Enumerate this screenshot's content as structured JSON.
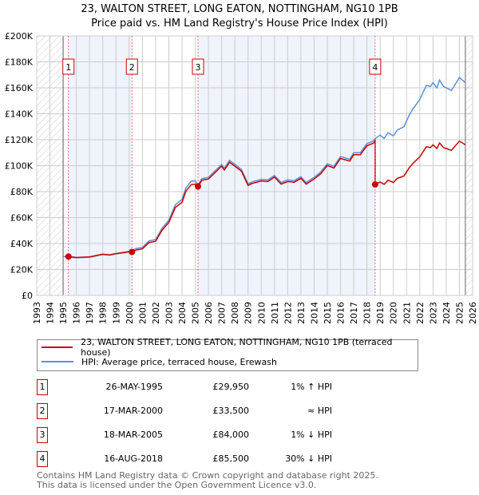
{
  "header": {
    "title": "23, WALTON STREET, LONG EATON, NOTTINGHAM, NG10 1PB",
    "subtitle": "Price paid vs. HM Land Registry's House Price Index (HPI)"
  },
  "chart_data": {
    "type": "line",
    "title": "23, WALTON STREET, LONG EATON, NOTTINGHAM, NG10 1PB",
    "subtitle": "Price paid vs. HM Land Registry's House Price Index (HPI)",
    "xlim": [
      1993,
      2026
    ],
    "ylim": [
      0,
      200000
    ],
    "x_ticks": [
      "1993",
      "1994",
      "1995",
      "1996",
      "1997",
      "1998",
      "1999",
      "2000",
      "2001",
      "2002",
      "2003",
      "2004",
      "2005",
      "2006",
      "2007",
      "2008",
      "2009",
      "2010",
      "2011",
      "2012",
      "2013",
      "2014",
      "2015",
      "2016",
      "2017",
      "2018",
      "2019",
      "2020",
      "2021",
      "2022",
      "2023",
      "2024",
      "2025",
      "2026"
    ],
    "y_ticks": [
      {
        "v": 0,
        "label": "£0"
      },
      {
        "v": 20000,
        "label": "£20K"
      },
      {
        "v": 40000,
        "label": "£40K"
      },
      {
        "v": 60000,
        "label": "£60K"
      },
      {
        "v": 80000,
        "label": "£80K"
      },
      {
        "v": 100000,
        "label": "£100K"
      },
      {
        "v": 120000,
        "label": "£120K"
      },
      {
        "v": 140000,
        "label": "£140K"
      },
      {
        "v": 160000,
        "label": "£160K"
      },
      {
        "v": 180000,
        "label": "£180K"
      },
      {
        "v": 200000,
        "label": "£200K"
      }
    ],
    "grid": true,
    "data_range": [
      1995.0,
      2025.45
    ],
    "colors": {
      "property": "#cc0000",
      "hpi": "#5b8fd6",
      "shade": "#eef3fc",
      "sale_line": "#e05050"
    },
    "hpi_series": {
      "name": "HPI: Average price, terraced house, Erewash",
      "points": [
        [
          1995.0,
          30000
        ],
        [
          1995.4,
          29700
        ],
        [
          1996,
          29000
        ],
        [
          1997,
          29500
        ],
        [
          1998,
          31500
        ],
        [
          1998.5,
          31000
        ],
        [
          1999,
          32000
        ],
        [
          2000,
          33500
        ],
        [
          2000.5,
          36000
        ],
        [
          2001,
          37000
        ],
        [
          2001.5,
          42000
        ],
        [
          2002,
          43000
        ],
        [
          2002.5,
          52000
        ],
        [
          2003,
          58000
        ],
        [
          2003.5,
          70000
        ],
        [
          2004,
          74000
        ],
        [
          2004.3,
          83000
        ],
        [
          2004.7,
          88000
        ],
        [
          2005,
          88500
        ],
        [
          2005.2,
          85000
        ],
        [
          2005.5,
          90000
        ],
        [
          2006,
          91000
        ],
        [
          2006.5,
          96000
        ],
        [
          2007,
          101000
        ],
        [
          2007.2,
          98000
        ],
        [
          2007.6,
          104000
        ],
        [
          2008,
          101000
        ],
        [
          2008.5,
          97000
        ],
        [
          2009,
          86000
        ],
        [
          2009.3,
          87500
        ],
        [
          2010,
          89500
        ],
        [
          2010.5,
          89000
        ],
        [
          2011,
          92500
        ],
        [
          2011.5,
          87000
        ],
        [
          2012,
          89000
        ],
        [
          2012.5,
          88500
        ],
        [
          2013,
          91500
        ],
        [
          2013.4,
          87000
        ],
        [
          2014,
          91000
        ],
        [
          2014.5,
          95000
        ],
        [
          2015,
          101500
        ],
        [
          2015.5,
          99500
        ],
        [
          2016,
          107000
        ],
        [
          2016.7,
          105000
        ],
        [
          2017,
          110000
        ],
        [
          2017.5,
          110000
        ],
        [
          2018,
          117000
        ],
        [
          2018.5,
          119000
        ],
        [
          2018.63,
          121000
        ],
        [
          2019,
          123500
        ],
        [
          2019.3,
          121000
        ],
        [
          2019.6,
          125500
        ],
        [
          2020,
          123000
        ],
        [
          2020.3,
          127500
        ],
        [
          2020.8,
          130000
        ],
        [
          2021.2,
          139000
        ],
        [
          2021.5,
          144000
        ],
        [
          2022,
          151000
        ],
        [
          2022.5,
          162000
        ],
        [
          2022.8,
          161000
        ],
        [
          2023,
          164000
        ],
        [
          2023.3,
          160000
        ],
        [
          2023.5,
          166000
        ],
        [
          2023.8,
          161000
        ],
        [
          2024,
          160000
        ],
        [
          2024.4,
          158000
        ],
        [
          2025,
          168000
        ],
        [
          2025.45,
          164000
        ]
      ]
    },
    "property_series": {
      "name": "23, WALTON STREET, LONG EATON, NOTTINGHAM, NG10 1PB (terraced house)"
    },
    "sales": [
      {
        "n": "1",
        "date": "26-MAY-1995",
        "x": 1995.4,
        "price": 29950,
        "price_label": "£29,950",
        "hpi": "1% ↑ HPI"
      },
      {
        "n": "2",
        "date": "17-MAR-2000",
        "x": 2000.21,
        "price": 33500,
        "price_label": "£33,500",
        "hpi": "≈ HPI"
      },
      {
        "n": "3",
        "date": "18-MAR-2005",
        "x": 2005.21,
        "price": 84000,
        "price_label": "£84,000",
        "hpi": "1% ↓ HPI"
      },
      {
        "n": "4",
        "date": "16-AUG-2018",
        "x": 2018.62,
        "price": 85500,
        "price_label": "£85,500",
        "hpi": "30% ↓ HPI"
      }
    ]
  },
  "legend": {
    "property": "23, WALTON STREET, LONG EATON, NOTTINGHAM, NG10 1PB (terraced house)",
    "hpi": "HPI: Average price, terraced house, Erewash"
  },
  "footer": {
    "line1": "Contains HM Land Registry data © Crown copyright and database right 2025.",
    "line2": "This data is licensed under the Open Government Licence v3.0."
  }
}
